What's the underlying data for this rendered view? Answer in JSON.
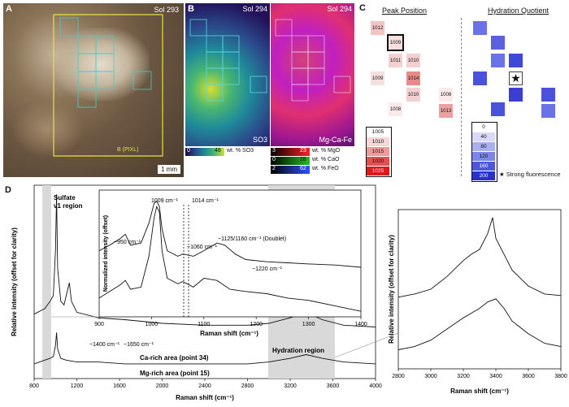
{
  "panel_a": {
    "label": "A",
    "sol": "Sol 293",
    "pixl_label": "B (PIXL)",
    "scale_label": "1 mm"
  },
  "panel_b": {
    "label": "B",
    "sol_left": "Sol 294",
    "sol_right": "Sol 294",
    "map_left_label": "SO3",
    "map_right_label": "Mg-Ca-Fe",
    "so3_colorbar": {
      "min": "0",
      "max": "48",
      "unit": "wt. % SO3"
    },
    "mgcafe_colorbars": [
      {
        "min": "3",
        "max": "23",
        "unit": "wt. % MgO",
        "color": "#ff2020"
      },
      {
        "min": "0",
        "max": "28",
        "unit": "wt. % CaO",
        "color": "#20c020"
      },
      {
        "min": "2",
        "max": "62",
        "unit": "wt. % FeO",
        "color": "#3050ff"
      }
    ]
  },
  "panel_c": {
    "label": "C",
    "peak_title": "Peak Position",
    "hydration_title": "Hydration Quotient",
    "peak_cells": [
      {
        "value": "1012",
        "color": "#f2c4c4"
      },
      {
        "value": "1009",
        "color": "#f7dede"
      },
      {
        "value": "1011",
        "color": "#f4d0d0"
      },
      {
        "value": "1010",
        "color": "#f4d0d0"
      },
      {
        "value": "1009",
        "color": "#f7dede"
      },
      {
        "value": "1014",
        "color": "#e98a8a"
      },
      {
        "value": "1010",
        "color": "#f4d0d0"
      },
      {
        "value": "1008",
        "color": "#fbeaea"
      },
      {
        "value": "1008",
        "color": "#fbeaea"
      },
      {
        "value": "1013",
        "color": "#eca0a0"
      }
    ],
    "peak_legend": [
      "1005",
      "1010",
      "1015",
      "1020",
      "1025"
    ],
    "hydration_legend": [
      "0",
      "40",
      "80",
      "120",
      "160",
      "200"
    ],
    "star_note": "★ Strong fluorescence"
  },
  "panel_d": {
    "label": "D",
    "chart_data": [
      {
        "type": "line",
        "title": "",
        "xlabel": "Raman shift (cm⁻¹)",
        "ylabel": "Relative intensity (offset for clarity)",
        "xlim": [
          800,
          4000
        ],
        "xticks": [
          "800",
          "1200",
          "1600",
          "2000",
          "2400",
          "2800",
          "3200",
          "3600",
          "4000"
        ],
        "annotations": [
          "Sulfate",
          "ν1 region",
          "~1400 cm⁻¹",
          "~1650 cm⁻¹",
          "Hydration region"
        ],
        "series": [
          {
            "name": "Ca-rich area (point 34)",
            "x": [
              800,
              900,
              950,
              980,
              1000,
              1010,
              1020,
              1050,
              1080,
              1100,
              1130,
              1150,
              1200,
              1400,
              1650,
              2000,
              2400,
              2800,
              3000,
              3200,
              3350,
              3500,
              3700,
              4000
            ],
            "y": [
              0.35,
              0.38,
              0.42,
              0.45,
              0.7,
              1.0,
              0.6,
              0.42,
              0.4,
              0.45,
              0.52,
              0.42,
              0.36,
              0.33,
              0.32,
              0.3,
              0.29,
              0.29,
              0.3,
              0.33,
              0.36,
              0.32,
              0.29,
              0.28
            ]
          },
          {
            "name": "Mg-rich area (point 15)",
            "x": [
              800,
              900,
              950,
              980,
              1000,
              1010,
              1020,
              1050,
              1100,
              1200,
              1400,
              1650,
              2000,
              2400,
              2800,
              3000,
              3200,
              3350,
              3500,
              3700,
              4000
            ],
            "y": [
              0.08,
              0.1,
              0.11,
              0.12,
              0.18,
              0.25,
              0.16,
              0.11,
              0.1,
              0.09,
              0.09,
              0.08,
              0.08,
              0.08,
              0.08,
              0.09,
              0.11,
              0.13,
              0.11,
              0.09,
              0.08
            ]
          }
        ]
      },
      {
        "type": "line",
        "title": "",
        "xlabel": "Raman shift (cm⁻¹)",
        "ylabel": "Normalized intensity (offset)",
        "xlim": [
          900,
          1400
        ],
        "xticks": [
          "900",
          "1000",
          "1100",
          "1200",
          "1300",
          "1400"
        ],
        "annotations": [
          "1009 cm⁻¹",
          "1014 cm⁻¹",
          "~950 cm⁻¹",
          "~1060 cm⁻¹",
          "~1125/1160 cm⁻¹ (Doublet)",
          "~1220 cm⁻¹"
        ],
        "series": [
          {
            "name": "Ca-rich",
            "x": [
              900,
              920,
              940,
              950,
              960,
              980,
              995,
              1005,
              1010,
              1015,
              1020,
              1030,
              1050,
              1060,
              1080,
              1100,
              1125,
              1140,
              1160,
              1180,
              1220,
              1260,
              1300,
              1350,
              1400
            ],
            "y": [
              0.55,
              0.6,
              0.66,
              0.7,
              0.6,
              0.62,
              0.8,
              0.98,
              1.0,
              0.95,
              0.75,
              0.55,
              0.5,
              0.52,
              0.5,
              0.55,
              0.62,
              0.6,
              0.52,
              0.47,
              0.45,
              0.44,
              0.43,
              0.42,
              0.4
            ]
          },
          {
            "name": "Mg-rich",
            "x": [
              900,
              920,
              940,
              950,
              960,
              980,
              995,
              1005,
              1010,
              1015,
              1020,
              1030,
              1050,
              1060,
              1080,
              1100,
              1125,
              1150,
              1180,
              1220,
              1260,
              1300,
              1350,
              1400
            ],
            "y": [
              0.12,
              0.18,
              0.24,
              0.28,
              0.2,
              0.22,
              0.5,
              0.85,
              0.95,
              0.9,
              0.55,
              0.3,
              0.25,
              0.27,
              0.22,
              0.3,
              0.28,
              0.2,
              0.18,
              0.16,
              0.12,
              0.1,
              0.05,
              0.0
            ]
          }
        ]
      },
      {
        "type": "line",
        "title": "",
        "xlabel": "Raman shift (cm⁻¹)",
        "ylabel": "Relative intensity (offset for clarity)",
        "xlim": [
          2800,
          3800
        ],
        "xticks": [
          "2800",
          "3000",
          "3200",
          "3400",
          "3600",
          "3800"
        ],
        "series": [
          {
            "name": "Ca-rich",
            "x": [
              2800,
              2900,
              3000,
              3100,
              3200,
              3250,
              3300,
              3350,
              3380,
              3400,
              3450,
              3500,
              3600,
              3700,
              3800
            ],
            "y": [
              0.45,
              0.47,
              0.5,
              0.58,
              0.68,
              0.72,
              0.75,
              0.85,
              0.95,
              0.82,
              0.72,
              0.62,
              0.52,
              0.47,
              0.46
            ]
          },
          {
            "name": "Mg-rich",
            "x": [
              2800,
              2900,
              3000,
              3100,
              3200,
              3250,
              3300,
              3350,
              3400,
              3450,
              3500,
              3600,
              3700,
              3800
            ],
            "y": [
              0.12,
              0.14,
              0.18,
              0.25,
              0.32,
              0.35,
              0.38,
              0.42,
              0.44,
              0.38,
              0.3,
              0.22,
              0.16,
              0.14
            ]
          }
        ]
      }
    ]
  }
}
